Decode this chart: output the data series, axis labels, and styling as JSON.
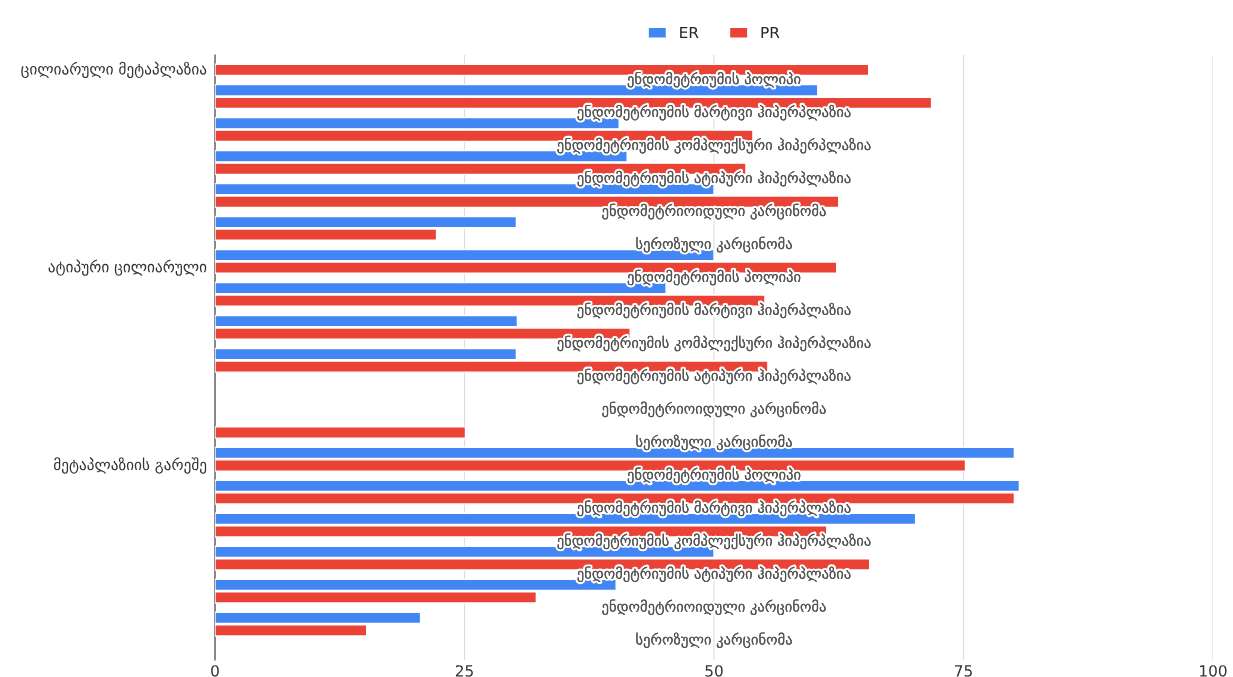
{
  "chart_data": {
    "type": "bar",
    "orientation": "horizontal",
    "categories": [
      "ენდომეტრიუმის პოლიპი",
      "ენდომეტრიუმის მარტივი ჰიპერპლაზია",
      "ენდომეტრიუმის კომპლექსური ჰიპერპლაზია",
      "ენდომეტრიუმის ატიპური ჰიპერპლაზია",
      "ენდომეტრიოიდული კარცინომა",
      "სეროზული კარცინომა",
      "ენდომეტრიუმის პოლიპი",
      "ენდომეტრიუმის მარტივი ჰიპერპლაზია",
      "ენდომეტრიუმის კომპლექსური ჰიპერპლაზია",
      "ენდომეტრიუმის ატიპური ჰიპერპლაზია",
      "ენდომეტრიოიდული კარცინომა",
      "სეროზული კარცინომა",
      "ენდომეტრიუმის პოლიპი",
      "ენდომეტრიუმის მარტივი ჰიპერპლაზია",
      "ენდომეტრიუმის კომპლექსური ჰიპერპლაზია",
      "ენდომეტრიუმის ატიპური ჰიპერპლაზია",
      "ენდომეტრიოიდული კარცინომა",
      "სეროზული კარცინომა"
    ],
    "series": [
      {
        "name": "ER",
        "color": "#4285f4",
        "values": [
          60.4,
          40.5,
          41.3,
          50,
          30.2,
          50,
          45.2,
          30.3,
          30.2,
          null,
          null,
          80.1,
          80.6,
          70.2,
          50,
          40.2,
          20.6,
          null
        ]
      },
      {
        "name": "PR",
        "color": "#ea4335",
        "values": [
          65.5,
          71.8,
          53.9,
          53.2,
          62.5,
          22.2,
          62.3,
          55.1,
          41.6,
          55.4,
          null,
          25.1,
          75.2,
          80.1,
          61.3,
          65.6,
          32.2,
          15.2
        ]
      }
    ],
    "annotations": [
      "ცილიარული მეტაპლაზია",
      "ატიპური ცილიარული",
      "მეტაპლაზიის გარეშე"
    ],
    "xlim": [
      0,
      100
    ],
    "xticks": [
      0,
      25,
      50,
      75,
      100
    ],
    "grid": "x",
    "legend": "top"
  }
}
